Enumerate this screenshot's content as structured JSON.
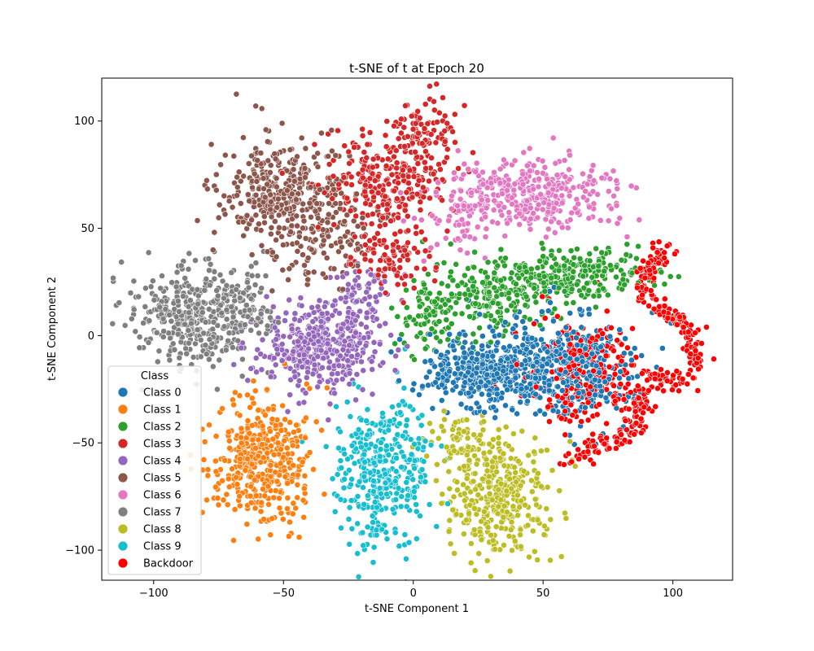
{
  "chart_data": {
    "type": "scatter",
    "title": "t-SNE of t at Epoch 20",
    "xlabel": "t-SNE Component 1",
    "ylabel": "t-SNE Component 2",
    "xlim": [
      -120,
      123
    ],
    "ylim": [
      -114,
      120
    ],
    "xticks": [
      -100,
      -50,
      0,
      50,
      100
    ],
    "yticks": [
      -100,
      -50,
      0,
      50,
      100
    ],
    "grid": false,
    "legend": {
      "title": "Class",
      "placement": "lower-left",
      "entries": [
        "Class 0",
        "Class 1",
        "Class 2",
        "Class 3",
        "Class 4",
        "Class 5",
        "Class 6",
        "Class 7",
        "Class 8",
        "Class 9",
        "Backdoor"
      ]
    },
    "series": [
      {
        "name": "Class 0",
        "color": "#1f77b4",
        "clusters": [
          {
            "cx": 35,
            "cy": -15,
            "sx": 14,
            "sy": 9,
            "count": 380
          },
          {
            "cx": 62,
            "cy": -15,
            "sx": 12,
            "sy": 13,
            "count": 280
          },
          {
            "cx": 20,
            "cy": -20,
            "sx": 8,
            "sy": 6,
            "count": 80
          }
        ]
      },
      {
        "name": "Class 1",
        "color": "#ff7f0e",
        "clusters": [
          {
            "cx": -58,
            "cy": -58,
            "sx": 10,
            "sy": 14,
            "count": 420
          }
        ]
      },
      {
        "name": "Class 2",
        "color": "#2ca02c",
        "clusters": [
          {
            "cx": 62,
            "cy": 28,
            "sx": 14,
            "sy": 6,
            "count": 240
          },
          {
            "cx": 28,
            "cy": 18,
            "sx": 12,
            "sy": 9,
            "count": 200
          },
          {
            "cx": 5,
            "cy": 10,
            "sx": 7,
            "sy": 8,
            "count": 70
          }
        ]
      },
      {
        "name": "Class 3",
        "color": "#d62728",
        "clusters": [
          {
            "cx": -12,
            "cy": 70,
            "sx": 12,
            "sy": 12,
            "count": 260
          },
          {
            "cx": 3,
            "cy": 92,
            "sx": 8,
            "sy": 8,
            "count": 110
          },
          {
            "cx": -8,
            "cy": 35,
            "sx": 8,
            "sy": 8,
            "count": 90
          }
        ]
      },
      {
        "name": "Class 4",
        "color": "#9467bd",
        "clusters": [
          {
            "cx": -35,
            "cy": -5,
            "sx": 11,
            "sy": 10,
            "count": 400
          },
          {
            "cx": -20,
            "cy": 20,
            "sx": 6,
            "sy": 7,
            "count": 60
          }
        ]
      },
      {
        "name": "Class 5",
        "color": "#8c564b",
        "clusters": [
          {
            "cx": -50,
            "cy": 65,
            "sx": 12,
            "sy": 14,
            "count": 380
          },
          {
            "cx": -30,
            "cy": 45,
            "sx": 8,
            "sy": 8,
            "count": 80
          }
        ]
      },
      {
        "name": "Class 6",
        "color": "#e377c2",
        "clusters": [
          {
            "cx": 45,
            "cy": 66,
            "sx": 16,
            "sy": 8,
            "count": 340
          },
          {
            "cx": 20,
            "cy": 55,
            "sx": 8,
            "sy": 8,
            "count": 70
          }
        ]
      },
      {
        "name": "Class 7",
        "color": "#7f7f7f",
        "clusters": [
          {
            "cx": -85,
            "cy": 10,
            "sx": 11,
            "sy": 12,
            "count": 380
          },
          {
            "cx": -65,
            "cy": 15,
            "sx": 6,
            "sy": 10,
            "count": 80
          }
        ]
      },
      {
        "name": "Class 8",
        "color": "#bcbd22",
        "clusters": [
          {
            "cx": 33,
            "cy": -75,
            "sx": 10,
            "sy": 14,
            "count": 360
          },
          {
            "cx": 18,
            "cy": -48,
            "sx": 6,
            "sy": 6,
            "count": 60
          }
        ]
      },
      {
        "name": "Class 9",
        "color": "#17becf",
        "clusters": [
          {
            "cx": -12,
            "cy": -65,
            "sx": 9,
            "sy": 17,
            "count": 380
          }
        ]
      },
      {
        "name": "Backdoor",
        "color": "#ff0000",
        "clusters": [
          {
            "cx": 68,
            "cy": -18,
            "sx": 11,
            "sy": 14,
            "count": 240
          }
        ],
        "paths": [
          {
            "points": [
              [
                97,
                42
              ],
              [
                90,
                30
              ],
              [
                87,
                20
              ],
              [
                95,
                12
              ],
              [
                104,
                8
              ],
              [
                109,
                -3
              ],
              [
                108,
                -14
              ],
              [
                101,
                -22
              ],
              [
                92,
                -18
              ],
              [
                88,
                -30
              ],
              [
                86,
                -44
              ],
              [
                78,
                -48
              ],
              [
                70,
                -53
              ],
              [
                60,
                -57
              ]
            ],
            "spread": 2.2,
            "count": 320
          }
        ]
      }
    ]
  }
}
